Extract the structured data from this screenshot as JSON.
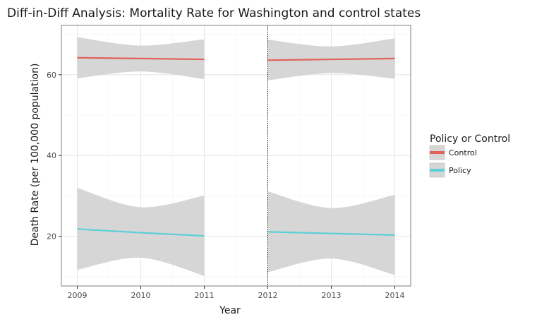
{
  "chart_data": {
    "type": "line",
    "title": "Diff-in-Diff Analysis: Mortality Rate for Washington and control states",
    "xlabel": "Year",
    "ylabel": "Death Rate (per 100,000 population)",
    "x_ticks": [
      "2009",
      "2010",
      "2011",
      "2012",
      "2013",
      "2014"
    ],
    "y_ticks": [
      "20",
      "40",
      "60"
    ],
    "xlim": [
      2008.75,
      2014.25
    ],
    "ylim": [
      7.7,
      72.2
    ],
    "grid": true,
    "vline_x": 2012,
    "legend": {
      "title": "Policy or Control",
      "placement": "right",
      "entries": [
        {
          "label": "Control",
          "color": "#e0625b"
        },
        {
          "label": "Policy",
          "color": "#5dcfd6"
        }
      ]
    },
    "ribbon_color": "#d6d6d6",
    "series": [
      {
        "name": "Control",
        "color": "#e0625b",
        "segments": [
          {
            "x": [
              2009,
              2010,
              2011
            ],
            "y": [
              64.2,
              64.0,
              63.8
            ],
            "lower": [
              59.1,
              60.8,
              58.9
            ],
            "upper": [
              69.3,
              67.2,
              68.8
            ]
          },
          {
            "x": [
              2012,
              2013,
              2014
            ],
            "y": [
              63.6,
              63.8,
              64.0
            ],
            "lower": [
              58.6,
              60.4,
              59.0
            ],
            "upper": [
              68.7,
              67.0,
              69.0
            ]
          }
        ]
      },
      {
        "name": "Policy",
        "color": "#5dcfd6",
        "segments": [
          {
            "x": [
              2009,
              2010,
              2011
            ],
            "y": [
              21.8,
              20.9,
              20.1
            ],
            "lower": [
              11.7,
              14.7,
              10.2
            ],
            "upper": [
              32.0,
              27.2,
              30.1
            ]
          },
          {
            "x": [
              2012,
              2013,
              2014
            ],
            "y": [
              21.1,
              20.7,
              20.3
            ],
            "lower": [
              11.1,
              14.5,
              10.4
            ],
            "upper": [
              31.1,
              27.0,
              30.3
            ]
          }
        ]
      }
    ]
  }
}
